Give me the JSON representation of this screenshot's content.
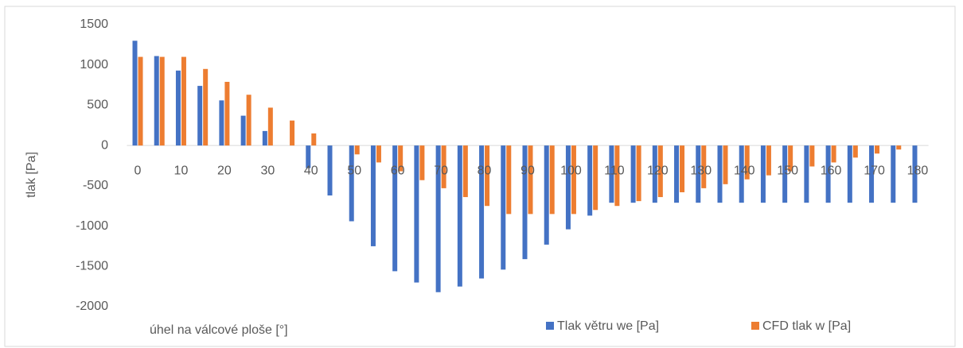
{
  "chart_data": {
    "type": "bar",
    "x_label": "úhel na válcové ploše [°]",
    "y_label": "tlak [Pa]",
    "categories": [
      "0",
      null,
      "10",
      null,
      "20",
      null,
      "30",
      null,
      "40",
      null,
      "50",
      null,
      "60",
      null,
      "70",
      null,
      "80",
      null,
      "90",
      null,
      "100",
      null,
      "110",
      null,
      "120",
      null,
      "130",
      null,
      "140",
      null,
      "150",
      null,
      "160",
      null,
      "170",
      null,
      "180"
    ],
    "series": [
      {
        "name": "Tlak větru we [Pa]",
        "color": "#4472c4",
        "values": [
          1300,
          1110,
          930,
          740,
          560,
          370,
          180,
          0,
          -280,
          -620,
          -940,
          -1250,
          -1560,
          -1700,
          -1820,
          -1750,
          -1650,
          -1540,
          -1410,
          -1230,
          -1040,
          -870,
          -710,
          -710,
          -710,
          -710,
          -710,
          -710,
          -710,
          -710,
          -710,
          -710,
          -710,
          -710,
          -710,
          -710,
          -710
        ]
      },
      {
        "name": "CFD tlak w [Pa]",
        "color": "#ed7d31",
        "values": [
          1100,
          1100,
          1100,
          950,
          790,
          630,
          470,
          310,
          150,
          0,
          -110,
          -210,
          -320,
          -430,
          -530,
          -640,
          -750,
          -850,
          -850,
          -850,
          -850,
          -800,
          -750,
          -690,
          -640,
          -580,
          -530,
          -480,
          -420,
          -370,
          -320,
          -260,
          -210,
          -150,
          -100,
          -50,
          0
        ]
      }
    ],
    "ylim": [
      -2000,
      1500
    ],
    "yticks": [
      -2000,
      -1500,
      -1000,
      -500,
      0,
      500,
      1000,
      1500
    ],
    "grid": false,
    "legend": "bottom"
  }
}
